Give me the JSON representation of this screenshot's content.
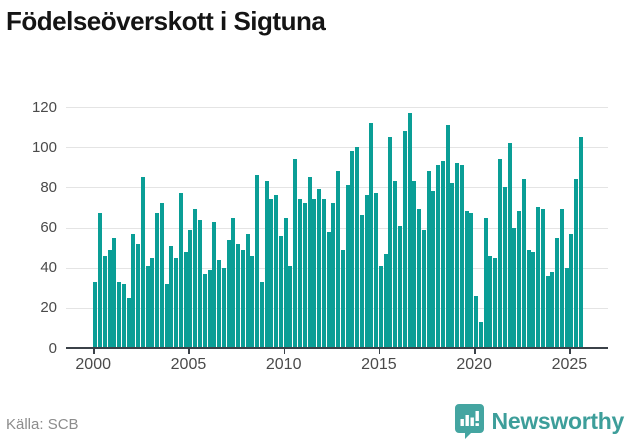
{
  "header": {
    "title": "Födelseöverskott i Sigtuna"
  },
  "footer": {
    "source_label": "Källa: SCB",
    "brand": "Newsworthy",
    "logo_icon": "bar-chart-speech-bubble-icon"
  },
  "colors": {
    "bar": "#0a9e96",
    "grid": "#e4e4e4",
    "axis": "#3b4148",
    "tick_label": "#4a4a4a",
    "title": "#141414",
    "source_text": "#8c8c8c",
    "brand": "#3d9e9a"
  },
  "chart_data": {
    "type": "bar",
    "title": "Födelseöverskott i Sigtuna",
    "frequency": "quarterly",
    "start_period": "2000 Q1",
    "end_period": "2025 Q3",
    "x_tick_labels": [
      "2000",
      "2005",
      "2010",
      "2015",
      "2020",
      "2025"
    ],
    "y_ticks": [
      0,
      20,
      40,
      60,
      80,
      100,
      120
    ],
    "ylim": [
      0,
      126
    ],
    "grid": "horizontal",
    "legend": "none",
    "source": "SCB",
    "values": [
      33,
      67,
      46,
      49,
      55,
      33,
      32,
      25,
      57,
      52,
      85,
      41,
      45,
      67,
      72,
      32,
      51,
      45,
      77,
      48,
      59,
      69,
      64,
      37,
      39,
      63,
      44,
      40,
      54,
      65,
      52,
      49,
      57,
      46,
      86,
      33,
      83,
      74,
      76,
      56,
      65,
      41,
      94,
      74,
      72,
      85,
      74,
      79,
      74,
      58,
      72,
      88,
      49,
      81,
      98,
      100,
      66,
      76,
      112,
      77,
      41,
      47,
      105,
      83,
      61,
      108,
      117,
      83,
      69,
      59,
      88,
      78,
      91,
      93,
      111,
      82,
      92,
      91,
      68,
      67,
      26,
      13,
      65,
      46,
      45,
      94,
      80,
      102,
      60,
      68,
      84,
      49,
      48,
      70,
      69,
      36,
      38,
      55,
      69,
      40,
      57,
      84,
      105
    ]
  }
}
